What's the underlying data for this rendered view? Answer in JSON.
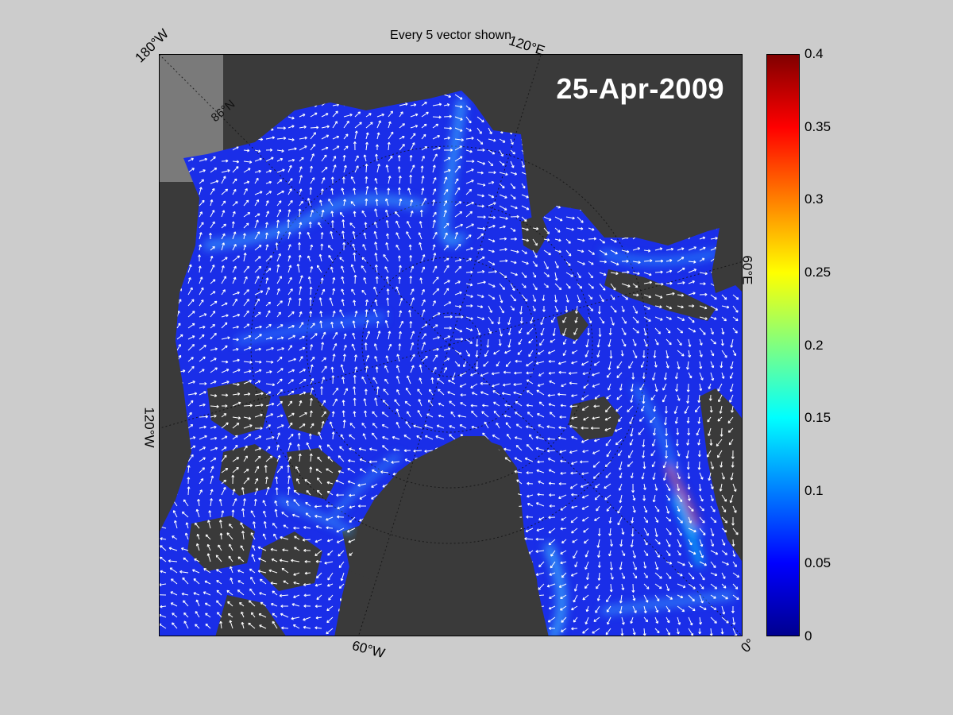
{
  "title": "Every 5 vector shown",
  "date": "25-Apr-2009",
  "longitude_labels": {
    "top_left": "180°W",
    "top_right": "120°E",
    "right": "60°E",
    "bottom_right": "0°",
    "bottom": "60°W",
    "left": "120°W"
  },
  "latitude_label": "86°N",
  "colorbar": {
    "ticks": [
      "0",
      "0.05",
      "0.1",
      "0.15",
      "0.2",
      "0.25",
      "0.3",
      "0.35",
      "0.4"
    ],
    "range": [
      0,
      0.4
    ],
    "colormap": "jet"
  },
  "colors": {
    "background": "#cccccc",
    "land": "#3a3a3a",
    "ice_low": "#1a2ee8",
    "vector": "#ffffff",
    "date_text": "#ffffff"
  }
}
